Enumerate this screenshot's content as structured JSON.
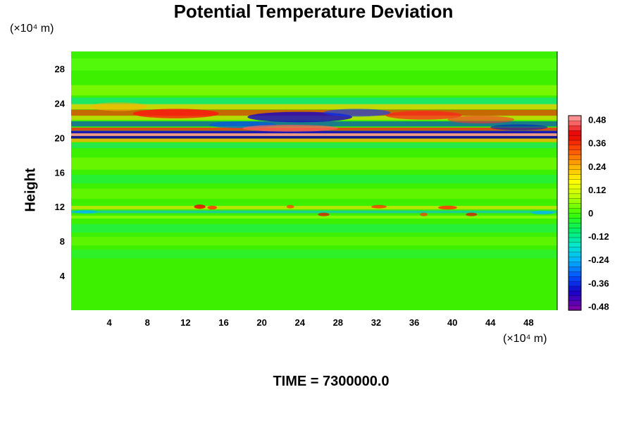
{
  "chart_data": {
    "type": "heatmap",
    "title": "Potential Temperature Deviation",
    "ylabel": "Height",
    "y_unit": "(×10⁴ m)",
    "x_unit": "(×10⁴ m)",
    "xlabel": "",
    "xlim": [
      0,
      51
    ],
    "ylim": [
      0,
      30
    ],
    "x_ticks": [
      "4",
      "8",
      "12",
      "16",
      "20",
      "24",
      "28",
      "32",
      "36",
      "40",
      "44",
      "48"
    ],
    "y_ticks": [
      "4",
      "8",
      "12",
      "16",
      "20",
      "24",
      "28"
    ],
    "colorbar": {
      "range": [
        -0.5,
        0.5
      ],
      "tick_labels": [
        "0.48",
        "0.36",
        "0.24",
        "0.12",
        "0",
        "-0.12",
        "-0.24",
        "-0.36",
        "-0.48"
      ],
      "colors": [
        "#7a00a8",
        "#1800c8",
        "#0050ff",
        "#00b4ff",
        "#00e8c8",
        "#00f060",
        "#40ff00",
        "#b8ff00",
        "#ffff00",
        "#ffb000",
        "#ff5000",
        "#e80000",
        "#ff9090"
      ]
    },
    "background_value": 0.03,
    "notable_features": [
      {
        "description": "positive band",
        "height": 23,
        "value": 0.45
      },
      {
        "description": "negative band",
        "height": 21.5,
        "value": -0.45
      },
      {
        "description": "strong alternating layer",
        "height": 20.3,
        "value": 0.48
      },
      {
        "description": "weak disturbances",
        "height": 11.5,
        "value": 0.2
      }
    ],
    "footer": "TIME = 7300000.0",
    "grid": false
  }
}
